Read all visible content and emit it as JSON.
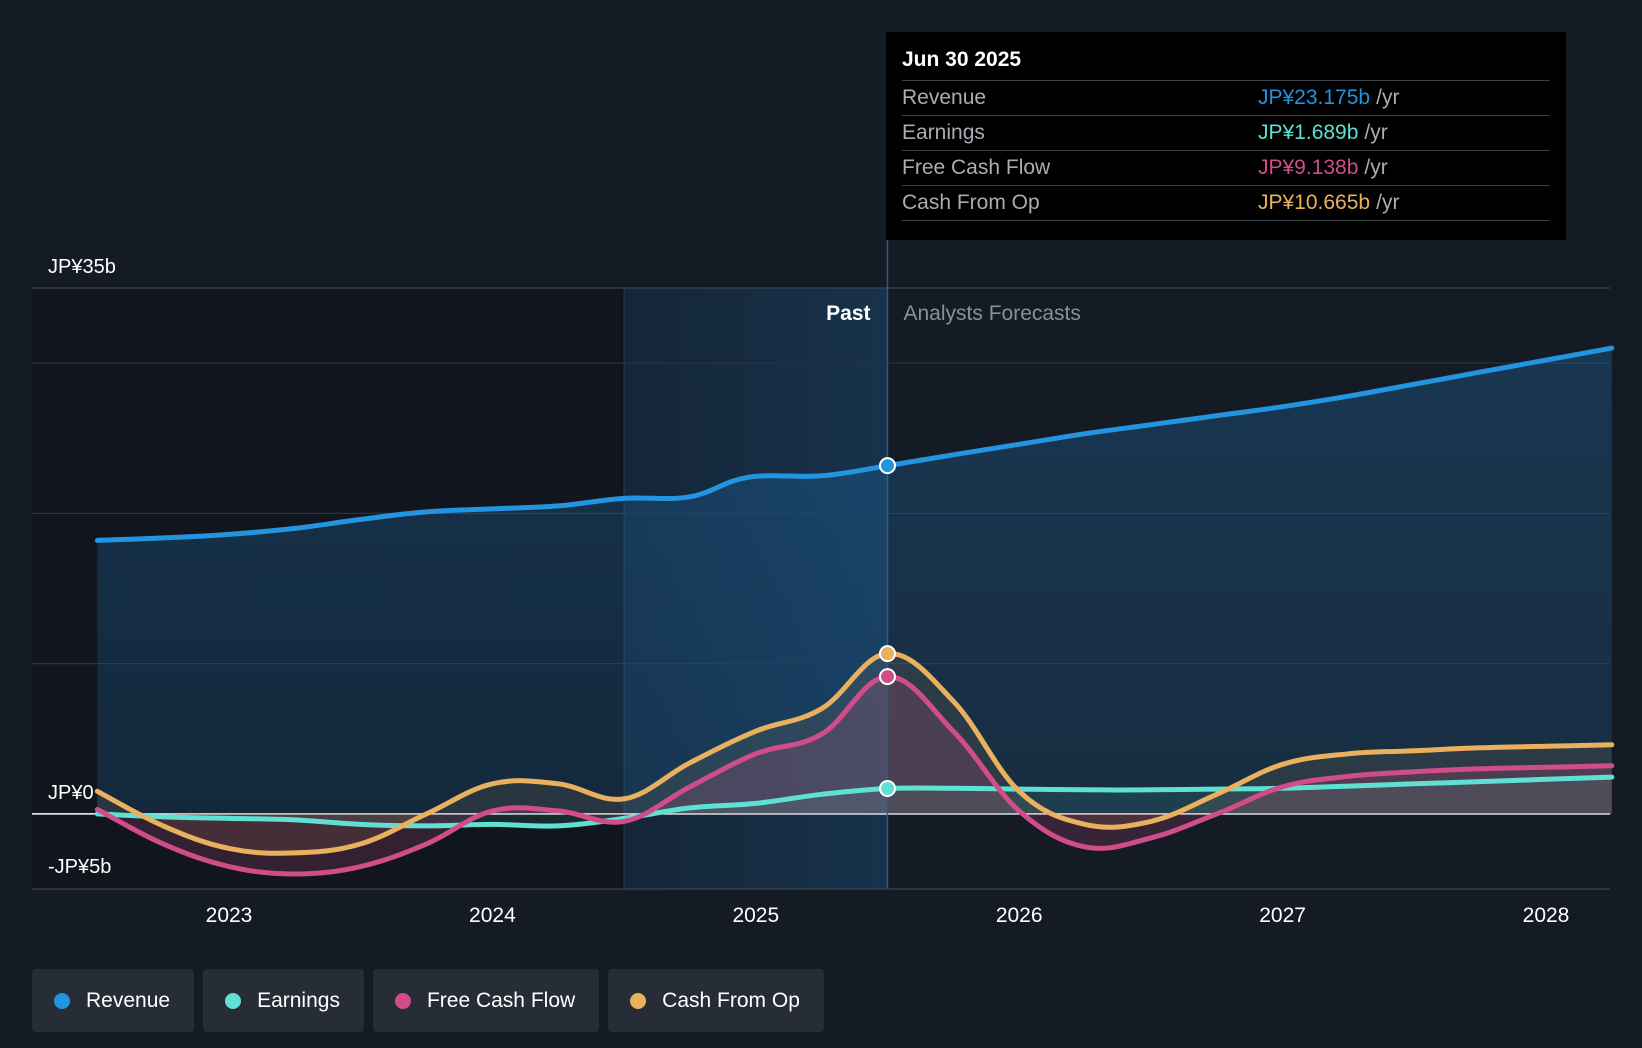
{
  "tooltip": {
    "date": "Jun 30 2025",
    "rows": [
      {
        "label": "Revenue",
        "value": "JP¥23.175b",
        "unit": "/yr",
        "color": "#2394df"
      },
      {
        "label": "Earnings",
        "value": "JP¥1.689b",
        "unit": "/yr",
        "color": "#5fe0d2"
      },
      {
        "label": "Free Cash Flow",
        "value": "JP¥9.138b",
        "unit": "/yr",
        "color": "#d14d8a"
      },
      {
        "label": "Cash From Op",
        "value": "JP¥10.665b",
        "unit": "/yr",
        "color": "#e9b15e"
      }
    ]
  },
  "regions": {
    "past_label": "Past",
    "forecast_label": "Analysts Forecasts"
  },
  "legend": [
    {
      "label": "Revenue",
      "color": "#2394df"
    },
    {
      "label": "Earnings",
      "color": "#5fe0d2"
    },
    {
      "label": "Free Cash Flow",
      "color": "#d14d8a"
    },
    {
      "label": "Cash From Op",
      "color": "#e9b15e"
    }
  ],
  "chart_data": {
    "type": "line",
    "title": "",
    "xlabel": "",
    "ylabel": "",
    "x_range": [
      2022.25,
      2028.25
    ],
    "ylim": [
      -5,
      35
    ],
    "y_tick_labels": [
      {
        "value": 35,
        "label": "JP¥35b"
      },
      {
        "value": 0,
        "label": "JP¥0"
      },
      {
        "value": -5,
        "label": "-JP¥5b"
      }
    ],
    "y_gridlines": [
      35,
      30,
      20,
      10,
      0,
      -5
    ],
    "x_ticks": [
      {
        "value": 2023,
        "label": "2023"
      },
      {
        "value": 2024,
        "label": "2024"
      },
      {
        "value": 2025,
        "label": "2025"
      },
      {
        "value": 2026,
        "label": "2026"
      },
      {
        "value": 2027,
        "label": "2027"
      },
      {
        "value": 2028,
        "label": "2028"
      }
    ],
    "past_shade_start": 2024.5,
    "divider_x": 2025.5,
    "series": [
      {
        "name": "Revenue",
        "color": "#2394df",
        "x": [
          2022.5,
          2022.8,
          2023.0,
          2023.25,
          2023.5,
          2023.75,
          2024.0,
          2024.25,
          2024.5,
          2024.75,
          2024.97,
          2025.25,
          2025.5,
          2025.75,
          2026.0,
          2026.25,
          2026.5,
          2026.75,
          2027.0,
          2027.25,
          2027.5,
          2027.75,
          2028.0,
          2028.25
        ],
        "values": [
          18.2,
          18.4,
          18.6,
          19.0,
          19.6,
          20.1,
          20.3,
          20.5,
          21.0,
          21.1,
          22.4,
          22.5,
          23.175,
          23.9,
          24.6,
          25.3,
          25.9,
          26.5,
          27.1,
          27.8,
          28.6,
          29.4,
          30.2,
          31.0
        ]
      },
      {
        "name": "Earnings",
        "color": "#5fe0d2",
        "x": [
          2022.5,
          2022.75,
          2023.0,
          2023.25,
          2023.5,
          2023.75,
          2024.0,
          2024.25,
          2024.5,
          2024.75,
          2025.0,
          2025.25,
          2025.5,
          2025.75,
          2026.0,
          2026.25,
          2026.5,
          2026.75,
          2027.0,
          2027.25,
          2027.5,
          2027.75,
          2028.0,
          2028.25
        ],
        "values": [
          0.0,
          -0.2,
          -0.3,
          -0.4,
          -0.7,
          -0.8,
          -0.7,
          -0.8,
          -0.3,
          0.4,
          0.7,
          1.3,
          1.689,
          1.7,
          1.65,
          1.6,
          1.6,
          1.65,
          1.7,
          1.85,
          2.0,
          2.15,
          2.3,
          2.45
        ]
      },
      {
        "name": "Free Cash Flow",
        "color": "#d14d8a",
        "x": [
          2022.5,
          2022.75,
          2023.0,
          2023.25,
          2023.5,
          2023.75,
          2024.0,
          2024.25,
          2024.5,
          2024.75,
          2025.0,
          2025.25,
          2025.5,
          2025.75,
          2026.0,
          2026.25,
          2026.5,
          2026.75,
          2027.0,
          2027.25,
          2027.5,
          2027.75,
          2028.0,
          2028.25
        ],
        "values": [
          0.3,
          -2.0,
          -3.5,
          -4.0,
          -3.5,
          -2.0,
          0.2,
          0.2,
          -0.5,
          1.8,
          4.0,
          5.3,
          9.138,
          5.5,
          0.2,
          -2.2,
          -1.6,
          0.0,
          1.8,
          2.5,
          2.8,
          3.0,
          3.1,
          3.2
        ]
      },
      {
        "name": "Cash From Op",
        "color": "#e9b15e",
        "x": [
          2022.5,
          2022.75,
          2023.0,
          2023.25,
          2023.5,
          2023.75,
          2024.0,
          2024.25,
          2024.5,
          2024.75,
          2025.0,
          2025.25,
          2025.5,
          2025.75,
          2026.0,
          2026.25,
          2026.5,
          2026.75,
          2027.0,
          2027.25,
          2027.5,
          2027.75,
          2028.0,
          2028.25
        ],
        "values": [
          1.5,
          -0.8,
          -2.3,
          -2.6,
          -2.0,
          0.0,
          2.0,
          2.0,
          1.0,
          3.4,
          5.5,
          7.0,
          10.665,
          7.5,
          1.5,
          -0.7,
          -0.5,
          1.3,
          3.3,
          4.0,
          4.2,
          4.4,
          4.5,
          4.6
        ]
      }
    ],
    "highlight": {
      "x": 2025.5,
      "values": [
        23.175,
        1.689,
        9.138,
        10.665
      ]
    }
  }
}
